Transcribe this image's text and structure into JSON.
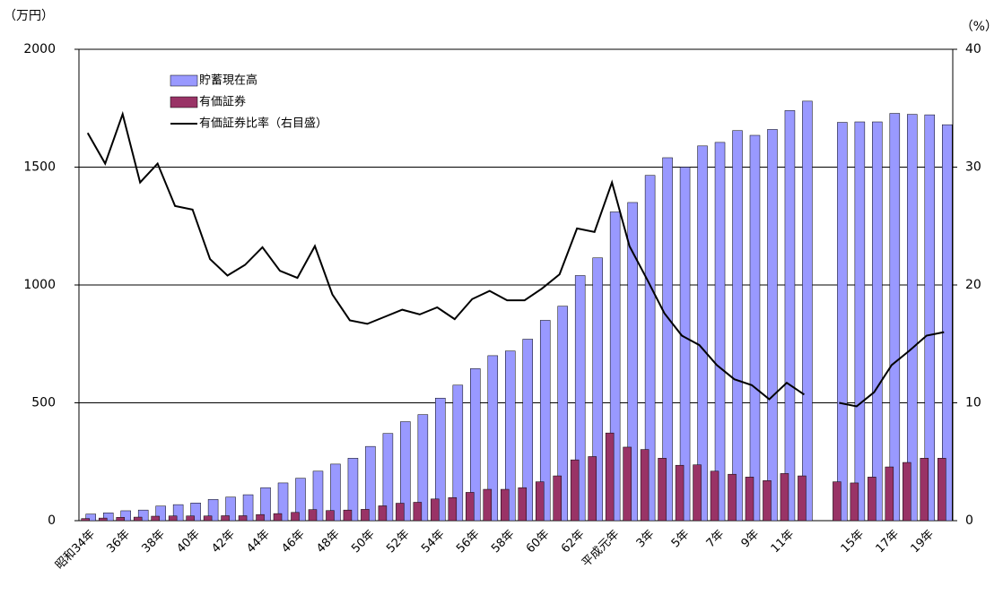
{
  "chart_data": {
    "type": "bar-line",
    "y_label": "（万円）",
    "y2_label": "（%）",
    "categories": [
      "昭和34年",
      null,
      "36年",
      null,
      "38年",
      null,
      "40年",
      null,
      "42年",
      null,
      "44年",
      null,
      "46年",
      null,
      "48年",
      null,
      "50年",
      null,
      "52年",
      null,
      "54年",
      null,
      "56年",
      null,
      "58年",
      null,
      "60年",
      null,
      "62年",
      null,
      "平成元年",
      null,
      "3年",
      null,
      "5年",
      null,
      "7年",
      null,
      "9年",
      null,
      "11年",
      null,
      null,
      null,
      "15年",
      null,
      "17年",
      null,
      "19年",
      null
    ],
    "series": [
      {
        "name": "貯蓄現在高",
        "type": "bar",
        "color": "#9999ff",
        "values": [
          28,
          33,
          42,
          45,
          62,
          68,
          75,
          90,
          100,
          110,
          140,
          160,
          180,
          210,
          240,
          265,
          315,
          370,
          420,
          450,
          520,
          575,
          645,
          700,
          720,
          770,
          850,
          910,
          1040,
          1115,
          1310,
          1350,
          1465,
          1540,
          1500,
          1590,
          1605,
          1655,
          1635,
          1660,
          1740,
          1780,
          null,
          1690,
          1692,
          1692,
          1728,
          1724,
          1722,
          1680
        ]
      },
      {
        "name": "有価証券",
        "type": "bar",
        "color": "#993366",
        "values": [
          9,
          11,
          14,
          15,
          19,
          20,
          20,
          20,
          21,
          21,
          26,
          30,
          35,
          47,
          43,
          45,
          48,
          63,
          74,
          78,
          92,
          98,
          120,
          133,
          133,
          140,
          165,
          190,
          258,
          272,
          372,
          312,
          302,
          265,
          235,
          237,
          210,
          197,
          185,
          170,
          200,
          190,
          null,
          165,
          160,
          185,
          228,
          247,
          265,
          265
        ]
      },
      {
        "name": "有価証券比率（右目盛）",
        "type": "line",
        "axis": "y2",
        "color": "#000000",
        "values": [
          32.9,
          30.3,
          34.5,
          28.7,
          30.3,
          26.7,
          26.4,
          22.2,
          20.8,
          21.7,
          23.2,
          21.2,
          20.6,
          23.3,
          19.2,
          17.0,
          16.7,
          17.3,
          17.9,
          17.5,
          18.1,
          17.1,
          18.8,
          19.5,
          18.7,
          18.7,
          19.7,
          20.9,
          24.8,
          24.5,
          28.7,
          23.3,
          20.5,
          17.6,
          15.7,
          14.9,
          13.2,
          12.0,
          11.5,
          10.3,
          11.7,
          10.7,
          null,
          10.0,
          9.7,
          10.9,
          13.2,
          14.4,
          15.7,
          16.0
        ]
      }
    ],
    "ylim": [
      0,
      2000
    ],
    "yticks": [
      0,
      500,
      1000,
      1500,
      2000
    ],
    "y2lim": [
      0,
      40
    ],
    "y2ticks": [
      0,
      10,
      20,
      30,
      40
    ],
    "grid": true
  }
}
